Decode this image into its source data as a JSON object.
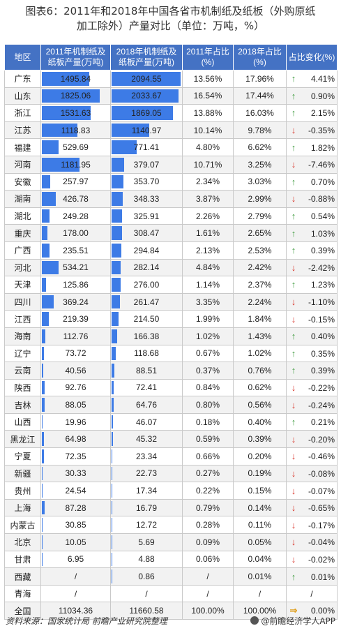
{
  "title_line1": "图表6：2011年和2018年中国各省市机制纸及纸板（外购原纸",
  "title_line2": "加工除外）产量对比（单位：万吨，%）",
  "headers": {
    "region": "地区",
    "v2011": "2011年机制纸及纸板产量(万吨)",
    "v2018": "2018年机制纸及纸板产量(万吨)",
    "s2011": "2011年占比(%)",
    "s2018": "2018年占比(%)",
    "chg": "占比变化(%)"
  },
  "colors": {
    "header_bg": "#4472C4",
    "bar": "#3D7BE6",
    "up": "#3f9b3f",
    "down": "#d9362b",
    "flat": "#e0a020"
  },
  "bar_max": 2100,
  "rows": [
    {
      "region": "广东",
      "v2011": "1495.84",
      "v2018": "2094.55",
      "s2011": "13.56%",
      "s2018": "17.96%",
      "dir": "up",
      "chg": "4.41%"
    },
    {
      "region": "山东",
      "v2011": "1825.06",
      "v2018": "2033.67",
      "s2011": "16.54%",
      "s2018": "17.44%",
      "dir": "up",
      "chg": "0.90%"
    },
    {
      "region": "浙江",
      "v2011": "1531.63",
      "v2018": "1869.05",
      "s2011": "13.88%",
      "s2018": "16.03%",
      "dir": "up",
      "chg": "2.15%"
    },
    {
      "region": "江苏",
      "v2011": "1118.83",
      "v2018": "1140.97",
      "s2011": "10.14%",
      "s2018": "9.78%",
      "dir": "down",
      "chg": "-0.35%"
    },
    {
      "region": "福建",
      "v2011": "529.69",
      "v2018": "771.41",
      "s2011": "4.80%",
      "s2018": "6.62%",
      "dir": "up",
      "chg": "1.82%"
    },
    {
      "region": "河南",
      "v2011": "1181.95",
      "v2018": "379.07",
      "s2011": "10.71%",
      "s2018": "3.25%",
      "dir": "down",
      "chg": "-7.46%"
    },
    {
      "region": "安徽",
      "v2011": "257.97",
      "v2018": "353.70",
      "s2011": "2.34%",
      "s2018": "3.03%",
      "dir": "up",
      "chg": "0.70%"
    },
    {
      "region": "湖南",
      "v2011": "426.78",
      "v2018": "348.33",
      "s2011": "3.87%",
      "s2018": "2.99%",
      "dir": "down",
      "chg": "-0.88%"
    },
    {
      "region": "湖北",
      "v2011": "249.28",
      "v2018": "325.91",
      "s2011": "2.26%",
      "s2018": "2.79%",
      "dir": "up",
      "chg": "0.54%"
    },
    {
      "region": "重庆",
      "v2011": "178.00",
      "v2018": "308.47",
      "s2011": "1.61%",
      "s2018": "2.65%",
      "dir": "up",
      "chg": "1.03%"
    },
    {
      "region": "广西",
      "v2011": "235.51",
      "v2018": "294.84",
      "s2011": "2.13%",
      "s2018": "2.53%",
      "dir": "up",
      "chg": "0.39%"
    },
    {
      "region": "河北",
      "v2011": "534.21",
      "v2018": "282.14",
      "s2011": "4.84%",
      "s2018": "2.42%",
      "dir": "down",
      "chg": "-2.42%"
    },
    {
      "region": "天津",
      "v2011": "125.86",
      "v2018": "276.00",
      "s2011": "1.14%",
      "s2018": "2.37%",
      "dir": "up",
      "chg": "1.23%"
    },
    {
      "region": "四川",
      "v2011": "369.24",
      "v2018": "261.47",
      "s2011": "3.35%",
      "s2018": "2.24%",
      "dir": "down",
      "chg": "-1.10%"
    },
    {
      "region": "江西",
      "v2011": "219.39",
      "v2018": "214.50",
      "s2011": "1.99%",
      "s2018": "1.84%",
      "dir": "down",
      "chg": "-0.15%"
    },
    {
      "region": "海南",
      "v2011": "112.76",
      "v2018": "166.38",
      "s2011": "1.02%",
      "s2018": "1.43%",
      "dir": "up",
      "chg": "0.40%"
    },
    {
      "region": "辽宁",
      "v2011": "73.72",
      "v2018": "118.68",
      "s2011": "0.67%",
      "s2018": "1.02%",
      "dir": "up",
      "chg": "0.35%"
    },
    {
      "region": "云南",
      "v2011": "40.56",
      "v2018": "88.51",
      "s2011": "0.37%",
      "s2018": "0.76%",
      "dir": "up",
      "chg": "0.39%"
    },
    {
      "region": "陕西",
      "v2011": "92.76",
      "v2018": "72.41",
      "s2011": "0.84%",
      "s2018": "0.62%",
      "dir": "down",
      "chg": "-0.22%"
    },
    {
      "region": "吉林",
      "v2011": "88.05",
      "v2018": "64.76",
      "s2011": "0.80%",
      "s2018": "0.56%",
      "dir": "down",
      "chg": "-0.24%"
    },
    {
      "region": "山西",
      "v2011": "19.96",
      "v2018": "46.07",
      "s2011": "0.18%",
      "s2018": "0.40%",
      "dir": "up",
      "chg": "0.21%"
    },
    {
      "region": "黑龙江",
      "v2011": "64.98",
      "v2018": "45.32",
      "s2011": "0.59%",
      "s2018": "0.39%",
      "dir": "down",
      "chg": "-0.20%"
    },
    {
      "region": "宁夏",
      "v2011": "72.35",
      "v2018": "23.34",
      "s2011": "0.66%",
      "s2018": "0.20%",
      "dir": "down",
      "chg": "-0.46%"
    },
    {
      "region": "新疆",
      "v2011": "30.33",
      "v2018": "22.73",
      "s2011": "0.27%",
      "s2018": "0.19%",
      "dir": "down",
      "chg": "-0.08%"
    },
    {
      "region": "贵州",
      "v2011": "24.54",
      "v2018": "17.34",
      "s2011": "0.22%",
      "s2018": "0.15%",
      "dir": "down",
      "chg": "-0.07%"
    },
    {
      "region": "上海",
      "v2011": "87.28",
      "v2018": "16.79",
      "s2011": "0.79%",
      "s2018": "0.14%",
      "dir": "down",
      "chg": "-0.65%"
    },
    {
      "region": "内蒙古",
      "v2011": "30.85",
      "v2018": "12.72",
      "s2011": "0.28%",
      "s2018": "0.11%",
      "dir": "down",
      "chg": "-0.17%"
    },
    {
      "region": "北京",
      "v2011": "10.05",
      "v2018": "5.69",
      "s2011": "0.09%",
      "s2018": "0.05%",
      "dir": "down",
      "chg": "-0.04%"
    },
    {
      "region": "甘肃",
      "v2011": "6.95",
      "v2018": "4.88",
      "s2011": "0.06%",
      "s2018": "0.04%",
      "dir": "down",
      "chg": "-0.02%"
    },
    {
      "region": "西藏",
      "v2011": "/",
      "v2018": "0.86",
      "s2011": "/",
      "s2018": "0.01%",
      "dir": "up",
      "chg": "0.01%"
    },
    {
      "region": "青海",
      "v2011": "/",
      "v2018": "/",
      "s2011": "/",
      "s2018": "/",
      "dir": "none",
      "chg": "/"
    },
    {
      "region": "全国",
      "v2011": "11034.36",
      "v2018": "11660.58",
      "s2011": "100.00%",
      "s2018": "100.00%",
      "dir": "flat",
      "chg": "0.00%"
    }
  ],
  "footer": {
    "source": "资料来源：国家统计局 前瞻产业研究院整理",
    "brand": "@前瞻经济学人APP"
  }
}
